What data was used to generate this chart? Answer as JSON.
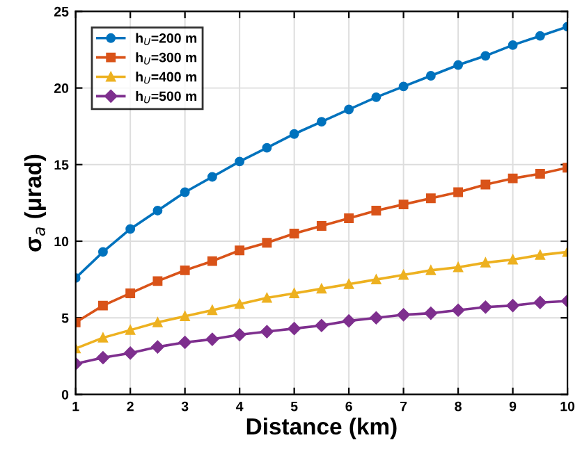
{
  "chart_data": {
    "type": "line",
    "xlabel": "Distance (km)",
    "ylabel": "σ$_{a}$ (μrad)",
    "x": [
      1,
      1.5,
      2,
      2.5,
      3,
      3.5,
      4,
      4.5,
      5,
      5.5,
      6,
      6.5,
      7,
      7.5,
      8,
      8.5,
      9,
      9.5,
      10
    ],
    "series": [
      {
        "name": "h$_{U}$=200 m",
        "color": "#0072bd",
        "marker": "circle",
        "values": [
          7.6,
          9.3,
          10.8,
          12.0,
          13.2,
          14.2,
          15.2,
          16.1,
          17.0,
          17.8,
          18.6,
          19.4,
          20.1,
          20.8,
          21.5,
          22.1,
          22.8,
          23.4,
          24.0
        ]
      },
      {
        "name": "h$_{U}$=300 m",
        "color": "#d95319",
        "marker": "square",
        "values": [
          4.7,
          5.8,
          6.6,
          7.4,
          8.1,
          8.7,
          9.4,
          9.9,
          10.5,
          11.0,
          11.5,
          12.0,
          12.4,
          12.8,
          13.2,
          13.7,
          14.1,
          14.4,
          14.8
        ]
      },
      {
        "name": "h$_{U}$=400 m",
        "color": "#edb120",
        "marker": "triangle",
        "values": [
          3.0,
          3.7,
          4.2,
          4.7,
          5.1,
          5.5,
          5.9,
          6.3,
          6.6,
          6.9,
          7.2,
          7.5,
          7.8,
          8.1,
          8.3,
          8.6,
          8.8,
          9.1,
          9.3
        ]
      },
      {
        "name": "h$_{U}$=500 m",
        "color": "#7e2f8e",
        "marker": "diamond",
        "values": [
          2.0,
          2.4,
          2.7,
          3.1,
          3.4,
          3.6,
          3.9,
          4.1,
          4.3,
          4.5,
          4.8,
          5.0,
          5.2,
          5.3,
          5.5,
          5.7,
          5.8,
          6.0,
          6.1
        ]
      }
    ],
    "xlim": [
      1,
      10
    ],
    "xticks": [
      1,
      2,
      3,
      4,
      5,
      6,
      7,
      8,
      9,
      10
    ],
    "ylim": [
      0,
      25
    ],
    "yticks": [
      0,
      5,
      10,
      15,
      20,
      25
    ],
    "grid": true,
    "legend": "top left",
    "line_style": "solid"
  }
}
